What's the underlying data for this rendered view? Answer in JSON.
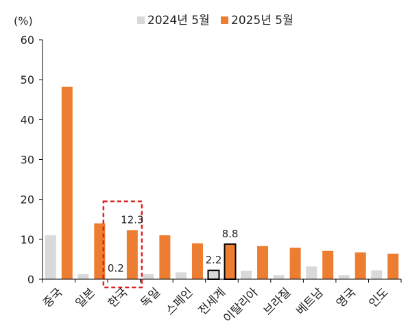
{
  "chart_data": {
    "type": "bar",
    "ylabel": "(%)",
    "ylim": [
      0,
      60
    ],
    "yticks": [
      0,
      10,
      20,
      30,
      40,
      50,
      60
    ],
    "grid": false,
    "legend_position": "top",
    "categories": [
      "중국",
      "일본",
      "한국",
      "독일",
      "스페인",
      "전세계",
      "이탈리아",
      "브라질",
      "베트남",
      "영국",
      "인도"
    ],
    "series": [
      {
        "name": "2024년 5월",
        "color": "#d9d9d9",
        "values": [
          11.0,
          1.3,
          0.2,
          1.3,
          1.7,
          2.2,
          2.1,
          1.0,
          3.2,
          1.0,
          2.2
        ]
      },
      {
        "name": "2025년 5월",
        "color": "#ed7d31",
        "values": [
          48.2,
          14.0,
          12.3,
          11.0,
          9.0,
          8.8,
          8.3,
          7.9,
          7.1,
          6.7,
          6.4
        ]
      }
    ],
    "data_labels": [
      {
        "category_index": 2,
        "series_index": 0,
        "text": "0.2"
      },
      {
        "category_index": 2,
        "series_index": 1,
        "text": "12.3"
      },
      {
        "category_index": 5,
        "series_index": 0,
        "text": "2.2"
      },
      {
        "category_index": 5,
        "series_index": 1,
        "text": "8.8"
      }
    ],
    "highlighted_bars_category_index": 5,
    "highlight_box_category_index": 2,
    "highlight_box_top_value": 19.5
  }
}
